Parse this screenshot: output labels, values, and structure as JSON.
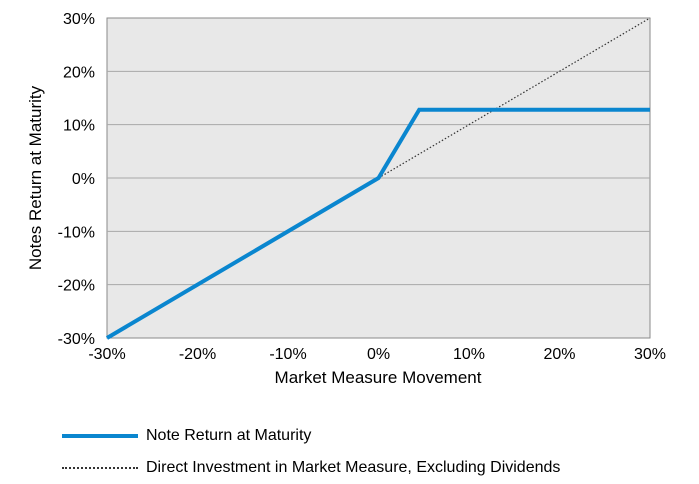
{
  "chart_data": {
    "type": "line",
    "xlabel": "Market Measure Movement",
    "ylabel": "Notes Return at Maturity",
    "xlim": [
      -30,
      30
    ],
    "ylim": [
      -30,
      30
    ],
    "x_ticks": [
      "-30%",
      "-20%",
      "-10%",
      "0%",
      "10%",
      "20%",
      "30%"
    ],
    "y_ticks": [
      "30%",
      "20%",
      "10%",
      "0%",
      "-10%",
      "-20%",
      "-30%"
    ],
    "grid": "horizontal",
    "legend_position": "bottom",
    "series": [
      {
        "name": "Note Return at Maturity",
        "color": "#0a86cf",
        "style": "solid",
        "points": [
          [
            -30,
            -30
          ],
          [
            0,
            0
          ],
          [
            4.5,
            12.8
          ],
          [
            30,
            12.8
          ]
        ]
      },
      {
        "name": "Direct Investment in Market Measure, Excluding Dividends",
        "color": "#333333",
        "style": "dotted",
        "points": [
          [
            0,
            0
          ],
          [
            30,
            30
          ]
        ]
      }
    ]
  }
}
